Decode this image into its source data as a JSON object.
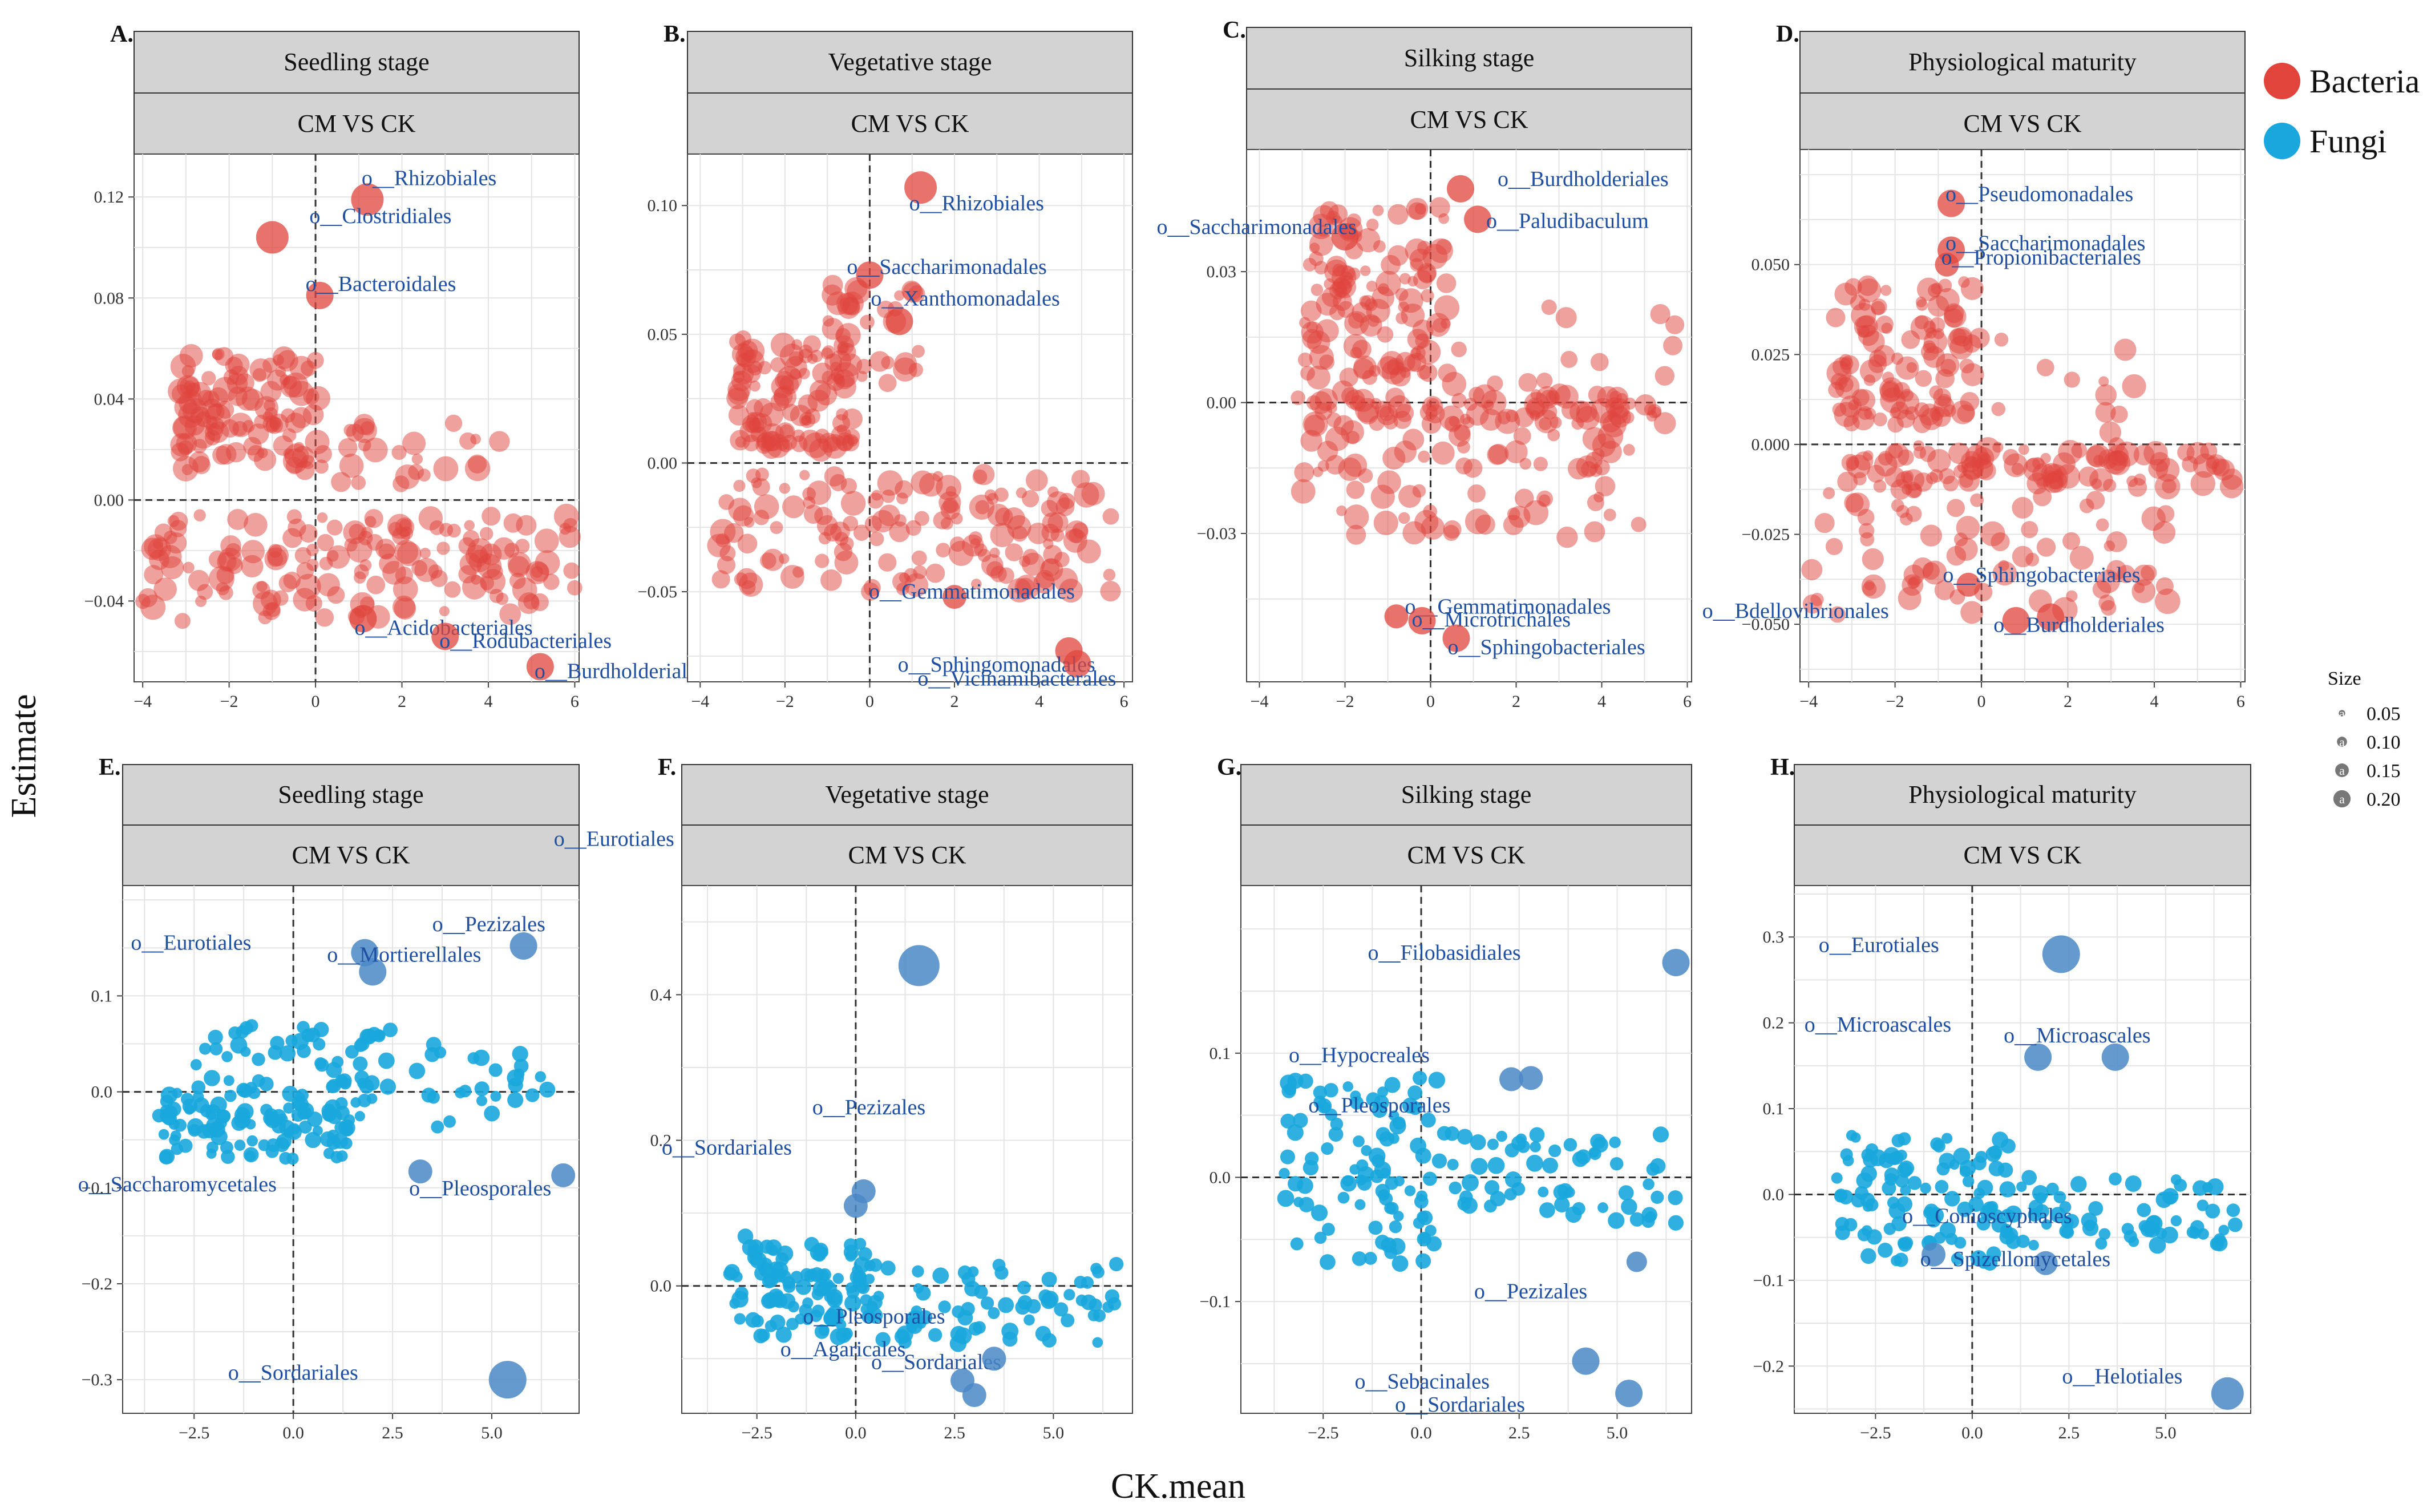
{
  "axis_titles": {
    "x": "CK.mean",
    "y": "Estimate"
  },
  "legend": {
    "groups": [
      {
        "name": "Bacteria",
        "color": "#e0443b"
      },
      {
        "name": "Fungi",
        "color": "#1aa7dd"
      }
    ],
    "size_title": "Size",
    "size_key_letter": "a",
    "sizes": [
      0.05,
      0.1,
      0.15,
      0.2
    ],
    "size_labels": [
      "0.05",
      "0.10",
      "0.15",
      "0.20"
    ]
  },
  "panels": [
    {
      "letter": "A.",
      "stage": "Seedling stage",
      "comparison": "CM VS CK",
      "group": "Bacteria",
      "xticks": [
        -4,
        -2,
        0,
        2,
        4,
        6
      ],
      "xtick_labels": [
        "−4",
        "−2",
        "0",
        "2",
        "4",
        "6"
      ],
      "yticks": [
        -0.04,
        0,
        0.04,
        0.08,
        0.12
      ],
      "ytick_labels": [
        "−0.04",
        "0.00",
        "0.04",
        "0.08",
        "0.12"
      ]
    },
    {
      "letter": "B.",
      "stage": "Vegetative stage",
      "comparison": "CM VS CK",
      "group": "Bacteria",
      "xticks": [
        -4,
        -2,
        0,
        2,
        4,
        6
      ],
      "xtick_labels": [
        "−4",
        "−2",
        "0",
        "2",
        "4",
        "6"
      ],
      "yticks": [
        -0.05,
        0,
        0.05,
        0.1
      ],
      "ytick_labels": [
        "−0.05",
        "0.00",
        "0.05",
        "0.10"
      ]
    },
    {
      "letter": "C.",
      "stage": "Silking stage",
      "comparison": "CM VS CK",
      "group": "Bacteria",
      "xticks": [
        -4,
        -2,
        0,
        2,
        4,
        6
      ],
      "xtick_labels": [
        "−4",
        "−2",
        "0",
        "2",
        "4",
        "6"
      ],
      "yticks": [
        -0.03,
        0,
        0.03
      ],
      "ytick_labels": [
        "−0.03",
        "0.00",
        "0.03"
      ]
    },
    {
      "letter": "D.",
      "stage": "Physiological maturity",
      "comparison": "CM VS CK",
      "group": "Bacteria",
      "xticks": [
        -4,
        -2,
        0,
        2,
        4,
        6
      ],
      "xtick_labels": [
        "−4",
        "−2",
        "0",
        "2",
        "4",
        "6"
      ],
      "yticks": [
        -0.05,
        -0.025,
        0,
        0.025,
        0.05
      ],
      "ytick_labels": [
        "−0.050",
        "−0.025",
        "0.000",
        "0.025",
        "0.050"
      ]
    },
    {
      "letter": "E.",
      "stage": "Seedling stage",
      "comparison": "CM VS CK",
      "group": "Fungi",
      "xticks": [
        -2.5,
        0,
        2.5,
        5
      ],
      "xtick_labels": [
        "−2.5",
        "0.0",
        "2.5",
        "5.0"
      ],
      "yticks": [
        -0.3,
        -0.2,
        -0.1,
        0,
        0.1
      ],
      "ytick_labels": [
        "−0.3",
        "−0.2",
        "−0.1",
        "0.0",
        "0.1"
      ]
    },
    {
      "letter": "F.",
      "stage": "Vegetative stage",
      "comparison": "CM VS CK",
      "group": "Fungi",
      "xticks": [
        -2.5,
        0,
        2.5,
        5
      ],
      "xtick_labels": [
        "−2.5",
        "0.0",
        "2.5",
        "5.0"
      ],
      "yticks": [
        0,
        0.2,
        0.4
      ],
      "ytick_labels": [
        "0.0",
        "0.2",
        "0.4"
      ]
    },
    {
      "letter": "G.",
      "stage": "Silking stage",
      "comparison": "CM VS CK",
      "group": "Fungi",
      "xticks": [
        -2.5,
        0,
        2.5,
        5
      ],
      "xtick_labels": [
        "−2.5",
        "0.0",
        "2.5",
        "5.0"
      ],
      "yticks": [
        -0.1,
        0,
        0.1
      ],
      "ytick_labels": [
        "−0.1",
        "0.0",
        "0.1"
      ]
    },
    {
      "letter": "H.",
      "stage": "Physiological maturity",
      "comparison": "CM VS CK",
      "group": "Fungi",
      "xticks": [
        -2.5,
        0,
        2.5,
        5
      ],
      "xtick_labels": [
        "−2.5",
        "0.0",
        "2.5",
        "5.0"
      ],
      "yticks": [
        -0.2,
        -0.1,
        0,
        0.1,
        0.2,
        0.3
      ],
      "ytick_labels": [
        "−0.2",
        "−0.1",
        "0.0",
        "0.1",
        "0.2",
        "0.3"
      ]
    }
  ],
  "chart_data": [
    {
      "type": "scatter",
      "title": "A. Seedling stage — CM VS CK",
      "group": "Bacteria",
      "xlabel": "CK.mean",
      "ylabel": "Estimate",
      "xlim": [
        -4.2,
        6.1
      ],
      "ylim": [
        -0.072,
        0.137
      ],
      "cloud": {
        "n": 300,
        "seed": 11,
        "clusters": [
          {
            "x": [
              -3.2,
              0.2
            ],
            "y": [
              0.012,
              0.058
            ],
            "w": 0.36
          },
          {
            "x": [
              -4.0,
              6.0
            ],
            "y": [
              -0.048,
              -0.006
            ],
            "w": 0.54
          },
          {
            "x": [
              -0.5,
              4.4
            ],
            "y": [
              0.002,
              0.034
            ],
            "w": 0.1
          }
        ]
      },
      "highlights": [
        {
          "label": "o__Rhizobiales",
          "x": 1.2,
          "y": 0.119,
          "size": 0.15
        },
        {
          "label": "o__Clostridiales",
          "x": -1.0,
          "y": 0.104,
          "size": 0.15
        },
        {
          "label": "o__Bacteroidales",
          "x": 0.1,
          "y": 0.081,
          "size": 0.12
        },
        {
          "label": "o__Acidobacteriales",
          "x": 1.1,
          "y": -0.047,
          "size": 0.12
        },
        {
          "label": "o__Rodubacteriales",
          "x": 3.0,
          "y": -0.054,
          "size": 0.12
        },
        {
          "label": "o__Burdholderiales",
          "x": 5.2,
          "y": -0.066,
          "size": 0.12
        }
      ]
    },
    {
      "type": "scatter",
      "title": "B. Vegetative stage — CM VS CK",
      "group": "Bacteria",
      "xlabel": "CK.mean",
      "ylabel": "Estimate",
      "xlim": [
        -4.3,
        6.2
      ],
      "ylim": [
        -0.085,
        0.12
      ],
      "cloud": {
        "n": 300,
        "seed": 23,
        "clusters": [
          {
            "x": [
              -3.2,
              -0.4
            ],
            "y": [
              0.005,
              0.05
            ],
            "w": 0.38
          },
          {
            "x": [
              -3.6,
              5.7
            ],
            "y": [
              -0.05,
              -0.004
            ],
            "w": 0.52
          },
          {
            "x": [
              -1.0,
              1.2
            ],
            "y": [
              0.03,
              0.07
            ],
            "w": 0.1
          }
        ]
      },
      "highlights": [
        {
          "label": "o__Rhizobiales",
          "x": 1.2,
          "y": 0.107,
          "size": 0.15
        },
        {
          "label": "o__Saccharimonadales",
          "x": 0.0,
          "y": 0.073,
          "size": 0.12
        },
        {
          "label": "o__Xanthomonadales",
          "x": 0.7,
          "y": 0.055,
          "size": 0.12
        },
        {
          "label": "o__Gemmatimonadales",
          "x": 2.0,
          "y": -0.052,
          "size": 0.1
        },
        {
          "label": "o__Sphingomonadales",
          "x": 4.7,
          "y": -0.073,
          "size": 0.12
        },
        {
          "label": "o__Vicinamibacterales",
          "x": 4.9,
          "y": -0.078,
          "size": 0.12
        }
      ]
    },
    {
      "type": "scatter",
      "title": "C. Silking stage — CM VS CK",
      "group": "Bacteria",
      "xlabel": "CK.mean",
      "ylabel": "Estimate",
      "xlim": [
        -4.3,
        6.1
      ],
      "ylim": [
        -0.064,
        0.058
      ],
      "cloud": {
        "n": 300,
        "seed": 37,
        "clusters": [
          {
            "x": [
              -3.0,
              0.4
            ],
            "y": [
              0.005,
              0.045
            ],
            "w": 0.38
          },
          {
            "x": [
              -3.2,
              5.8
            ],
            "y": [
              -0.005,
              0.002
            ],
            "w": 0.28
          },
          {
            "x": [
              -3.0,
              5.0
            ],
            "y": [
              -0.032,
              -0.005
            ],
            "w": 0.26
          },
          {
            "x": [
              -3.6,
              5.8
            ],
            "y": [
              0.002,
              0.022
            ],
            "w": 0.08
          }
        ]
      },
      "highlights": [
        {
          "label": "o__Saccharimonadales",
          "x": -2.0,
          "y": 0.038,
          "size": 0.12
        },
        {
          "label": "o__Burdholderiales",
          "x": 0.7,
          "y": 0.049,
          "size": 0.12
        },
        {
          "label": "o__Paludibaculum",
          "x": 1.1,
          "y": 0.042,
          "size": 0.12
        },
        {
          "label": "o__Gemmatimonadales",
          "x": -0.8,
          "y": -0.049,
          "size": 0.1
        },
        {
          "label": "o__Microtrichales",
          "x": -0.2,
          "y": -0.05,
          "size": 0.12
        },
        {
          "label": "o__Sphingobacteriales",
          "x": 0.6,
          "y": -0.054,
          "size": 0.12
        }
      ]
    },
    {
      "type": "scatter",
      "title": "D. Physiological maturity — CM VS CK",
      "group": "Bacteria",
      "xlabel": "CK.mean",
      "ylabel": "Estimate",
      "xlim": [
        -4.2,
        6.1
      ],
      "ylim": [
        -0.066,
        0.082
      ],
      "cloud": {
        "n": 300,
        "seed": 53,
        "clusters": [
          {
            "x": [
              -3.4,
              -0.2
            ],
            "y": [
              0.005,
              0.046
            ],
            "w": 0.36
          },
          {
            "x": [
              -3.2,
              5.8
            ],
            "y": [
              -0.012,
              0.0
            ],
            "w": 0.34
          },
          {
            "x": [
              -4.0,
              4.5
            ],
            "y": [
              -0.048,
              -0.012
            ],
            "w": 0.26
          },
          {
            "x": [
              -1.0,
              3.6
            ],
            "y": [
              0.0,
              0.032
            ],
            "w": 0.04
          }
        ]
      },
      "highlights": [
        {
          "label": "o__Pseudomonadales",
          "x": -0.7,
          "y": 0.067,
          "size": 0.12
        },
        {
          "label": "o__Saccharimonadales",
          "x": -0.7,
          "y": 0.054,
          "size": 0.12
        },
        {
          "label": "o__Propionibacteriales",
          "x": -0.8,
          "y": 0.05,
          "size": 0.1
        },
        {
          "label": "o__Sphingobacteriales",
          "x": -0.3,
          "y": -0.039,
          "size": 0.1
        },
        {
          "label": "o__Bdellovibrionales",
          "x": 0.8,
          "y": -0.049,
          "size": 0.12
        },
        {
          "label": "o__Burdholderiales",
          "x": 1.6,
          "y": -0.048,
          "size": 0.12
        }
      ]
    },
    {
      "type": "scatter",
      "title": "E. Seedling stage — CM VS CK",
      "group": "Fungi",
      "xlabel": "CK.mean",
      "ylabel": "Estimate",
      "xlim": [
        -4.3,
        7.2
      ],
      "ylim": [
        -0.335,
        0.215
      ],
      "cloud": {
        "n": 190,
        "seed": 71,
        "clusters": [
          {
            "x": [
              -3.5,
              1.5
            ],
            "y": [
              -0.07,
              0.0
            ],
            "w": 0.55
          },
          {
            "x": [
              -2.5,
              2.5
            ],
            "y": [
              0.0,
              0.07
            ],
            "w": 0.25
          },
          {
            "x": [
              1.0,
              6.5
            ],
            "y": [
              -0.04,
              0.05
            ],
            "w": 0.2
          }
        ]
      },
      "highlights": [
        {
          "label": "o__Pezizales",
          "x": 5.8,
          "y": 0.152,
          "size": 0.12
        },
        {
          "label": "o__Eurotiales",
          "x": 1.8,
          "y": 0.145,
          "size": 0.12
        },
        {
          "label": "o__Mortierellales",
          "x": 2.0,
          "y": 0.125,
          "size": 0.12
        },
        {
          "label": "o__Saccharomycetales",
          "x": 3.2,
          "y": -0.083,
          "size": 0.1
        },
        {
          "label": "o__Pleosporales",
          "x": 6.8,
          "y": -0.087,
          "size": 0.1
        },
        {
          "label": "o__Sordariales",
          "x": 5.4,
          "y": -0.3,
          "size": 0.18
        }
      ]
    },
    {
      "type": "scatter",
      "title": "F. Vegetative stage — CM VS CK",
      "group": "Fungi",
      "xlabel": "CK.mean",
      "ylabel": "Estimate",
      "xlim": [
        -4.4,
        7.0
      ],
      "ylim": [
        -0.175,
        0.55
      ],
      "cloud": {
        "n": 180,
        "seed": 89,
        "clusters": [
          {
            "x": [
              -3.2,
              0.5
            ],
            "y": [
              -0.07,
              0.07
            ],
            "w": 0.6
          },
          {
            "x": [
              0.0,
              6.6
            ],
            "y": [
              -0.08,
              0.03
            ],
            "w": 0.4
          }
        ]
      },
      "highlights": [
        {
          "label": "o__Eurotiales",
          "x": 1.6,
          "y": 0.44,
          "size": 0.2
        },
        {
          "label": "o__Pezizales",
          "x": 0.2,
          "y": 0.13,
          "size": 0.1
        },
        {
          "label": "o__Sordariales",
          "x": 0.0,
          "y": 0.11,
          "size": 0.1
        },
        {
          "label": "o__Sordariales",
          "x": 2.7,
          "y": -0.13,
          "size": 0.1
        },
        {
          "label": "o__Pleosporales",
          "x": 3.5,
          "y": -0.1,
          "size": 0.1
        },
        {
          "label": "o__Agaricales",
          "x": 3.0,
          "y": -0.15,
          "size": 0.1
        }
      ]
    },
    {
      "type": "scatter",
      "title": "G. Silking stage — CM VS CK",
      "group": "Fungi",
      "xlabel": "CK.mean",
      "ylabel": "Estimate",
      "xlim": [
        -4.6,
        6.9
      ],
      "ylim": [
        -0.19,
        0.235
      ],
      "cloud": {
        "n": 160,
        "seed": 103,
        "clusters": [
          {
            "x": [
              -3.5,
              0.5
            ],
            "y": [
              -0.07,
              0.08
            ],
            "w": 0.62
          },
          {
            "x": [
              0.5,
              6.5
            ],
            "y": [
              -0.04,
              0.04
            ],
            "w": 0.38
          }
        ]
      },
      "highlights": [
        {
          "label": "o__Filobasidiales",
          "x": 6.5,
          "y": 0.173,
          "size": 0.12
        },
        {
          "label": "o__Hypocreales",
          "x": 2.3,
          "y": 0.079,
          "size": 0.1
        },
        {
          "label": "o__Pleosporales",
          "x": 2.8,
          "y": 0.08,
          "size": 0.1
        },
        {
          "label": "o__Pezizales",
          "x": 5.5,
          "y": -0.068,
          "size": 0.08
        },
        {
          "label": "o__Sebacinales",
          "x": 4.2,
          "y": -0.148,
          "size": 0.12
        },
        {
          "label": "o__Sordariales",
          "x": 5.3,
          "y": -0.174,
          "size": 0.12
        }
      ]
    },
    {
      "type": "scatter",
      "title": "H. Physiological maturity — CM VS CK",
      "group": "Fungi",
      "xlabel": "CK.mean",
      "ylabel": "Estimate",
      "xlim": [
        -4.6,
        7.2
      ],
      "ylim": [
        -0.255,
        0.36
      ],
      "cloud": {
        "n": 170,
        "seed": 127,
        "clusters": [
          {
            "x": [
              -3.5,
              1.0
            ],
            "y": [
              -0.08,
              0.07
            ],
            "w": 0.6
          },
          {
            "x": [
              0.5,
              6.8
            ],
            "y": [
              -0.06,
              0.02
            ],
            "w": 0.4
          }
        ]
      },
      "highlights": [
        {
          "label": "o__Eurotiales",
          "x": 2.3,
          "y": 0.28,
          "size": 0.18
        },
        {
          "label": "o__Microascales",
          "x": 3.7,
          "y": 0.16,
          "size": 0.12
        },
        {
          "label": "o__Microascales",
          "x": 1.7,
          "y": 0.16,
          "size": 0.12
        },
        {
          "label": "o__Conioscyphales",
          "x": -1.0,
          "y": -0.07,
          "size": 0.1
        },
        {
          "label": "o__Spizellomycetales",
          "x": 1.9,
          "y": -0.08,
          "size": 0.1
        },
        {
          "label": "o__Helotiales",
          "x": 6.6,
          "y": -0.232,
          "size": 0.15
        }
      ]
    }
  ]
}
